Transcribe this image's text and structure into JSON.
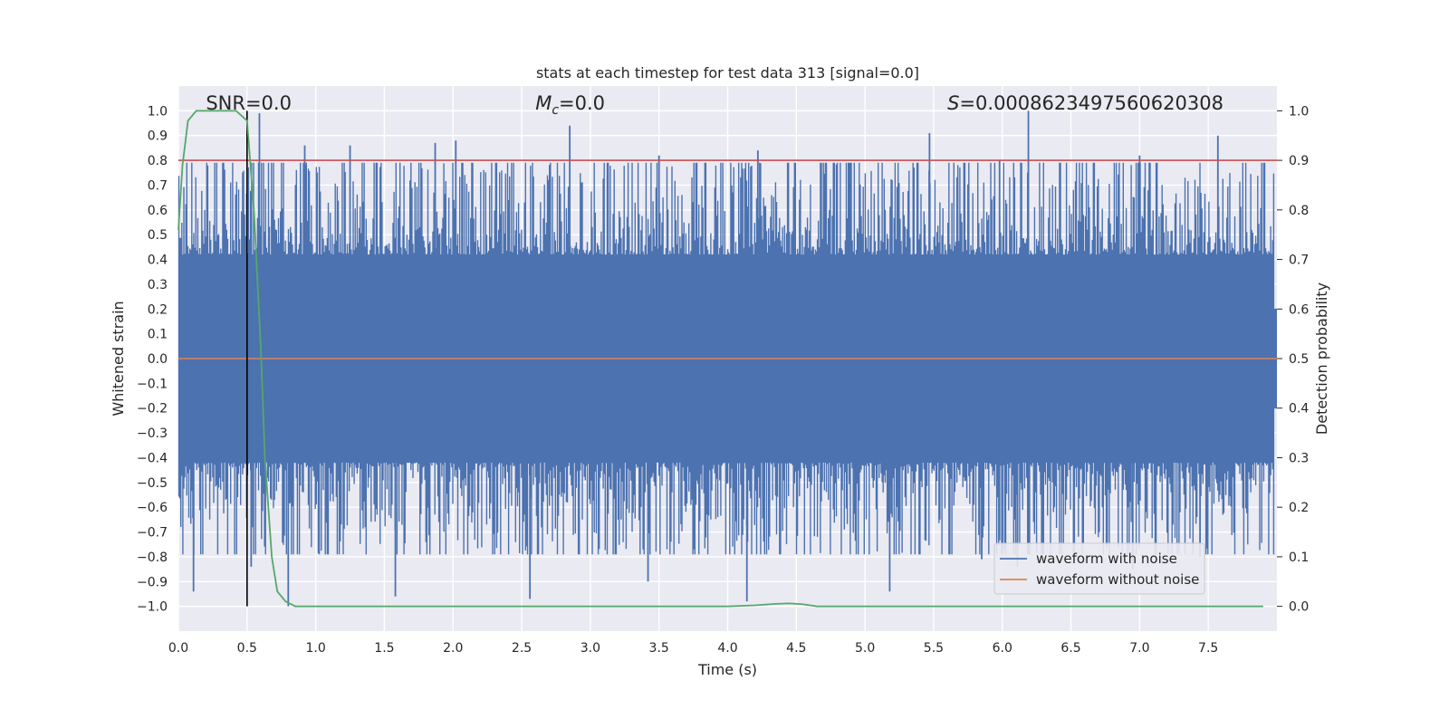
{
  "chart_data": {
    "type": "line",
    "title": "stats at each timestep for test data 313 [signal=0.0]",
    "xlabel": "Time (s)",
    "ylabel": "Whitened strain",
    "ylabel_right": "Detection probability",
    "xlim": [
      0.0,
      8.0
    ],
    "ylim": [
      -1.1,
      1.1
    ],
    "ylim_right": [
      -0.05,
      1.05
    ],
    "x_ticks": [
      0.0,
      0.5,
      1.0,
      1.5,
      2.0,
      2.5,
      3.0,
      3.5,
      4.0,
      4.5,
      5.0,
      5.5,
      6.0,
      6.5,
      7.0,
      7.5
    ],
    "x_tick_labels": [
      "0.0",
      "0.5",
      "1.0",
      "1.5",
      "2.0",
      "2.5",
      "3.0",
      "3.5",
      "4.0",
      "4.5",
      "5.0",
      "5.5",
      "6.0",
      "6.5",
      "7.0",
      "7.5"
    ],
    "y_ticks": [
      -1.0,
      -0.9,
      -0.8,
      -0.7,
      -0.6,
      -0.5,
      -0.4,
      -0.3,
      -0.2,
      -0.1,
      0.0,
      0.1,
      0.2,
      0.3,
      0.4,
      0.5,
      0.6,
      0.7,
      0.8,
      0.9,
      1.0
    ],
    "y_tick_labels": [
      "−1.0",
      "−0.9",
      "−0.8",
      "−0.7",
      "−0.6",
      "−0.5",
      "−0.4",
      "−0.3",
      "−0.2",
      "−0.1",
      "0.0",
      "0.1",
      "0.2",
      "0.3",
      "0.4",
      "0.5",
      "0.6",
      "0.7",
      "0.8",
      "0.9",
      "1.0"
    ],
    "y_right_ticks": [
      0.0,
      0.1,
      0.2,
      0.3,
      0.4,
      0.5,
      0.6,
      0.7,
      0.8,
      0.9,
      1.0
    ],
    "y_right_tick_labels": [
      "0.0",
      "0.1",
      "0.2",
      "0.3",
      "0.4",
      "0.5",
      "0.6",
      "0.7",
      "0.8",
      "0.9",
      "1.0"
    ],
    "annotations": {
      "snr": "SNR=0.0",
      "mc_symbol": "M",
      "mc_sub": "c",
      "mc_value": "=0.0",
      "s_symbol": "S",
      "s_value": "=0.0008623497560620308"
    },
    "threshold": {
      "axis": "right",
      "value": 0.9,
      "color": "#c44e52"
    },
    "marker_line": {
      "x": 0.5,
      "y_range": [
        -1.0,
        1.0
      ],
      "color": "#000000"
    },
    "series": [
      {
        "name": "waveform with noise",
        "axis": "left",
        "color": "#4c72b0",
        "kind": "noise",
        "core_amplitude": 0.42,
        "peak_x": [
          0.59,
          0.92,
          1.25,
          1.87,
          2.02,
          2.85,
          3.5,
          4.22,
          5.47,
          5.98,
          6.19,
          7.0,
          7.57
        ],
        "peak_y": [
          0.99,
          0.86,
          0.86,
          0.87,
          0.88,
          0.94,
          0.82,
          0.84,
          0.91,
          0.8,
          1.0,
          0.82,
          0.9
        ],
        "trough_x": [
          0.11,
          0.53,
          0.8,
          1.58,
          2.56,
          3.42,
          4.14,
          5.18,
          5.85,
          6.11,
          6.95,
          7.44
        ],
        "trough_y": [
          -0.94,
          -0.84,
          -1.0,
          -0.96,
          -0.97,
          -0.9,
          -0.98,
          -0.94,
          -0.81,
          -0.84,
          -0.85,
          -0.8
        ]
      },
      {
        "name": "waveform without noise",
        "axis": "left",
        "color": "#dd8452",
        "x": [
          0.0,
          8.0
        ],
        "y": [
          0.0,
          0.0
        ]
      },
      {
        "name": "detection probability",
        "axis": "right",
        "color": "#55a868",
        "x": [
          0.0,
          0.03,
          0.07,
          0.13,
          0.2,
          0.3,
          0.42,
          0.5,
          0.55,
          0.6,
          0.63,
          0.68,
          0.72,
          0.78,
          0.85,
          1.0,
          2.0,
          3.0,
          4.0,
          4.2,
          4.35,
          4.45,
          4.55,
          4.65,
          5.0,
          6.0,
          7.0,
          7.9
        ],
        "y": [
          0.76,
          0.89,
          0.98,
          1.0,
          1.0,
          1.0,
          1.0,
          0.98,
          0.8,
          0.52,
          0.3,
          0.1,
          0.03,
          0.01,
          0.0,
          0.0,
          0.0,
          0.0,
          0.0,
          0.002,
          0.005,
          0.006,
          0.004,
          0.0,
          0.0,
          0.0,
          0.0,
          0.0
        ]
      }
    ],
    "legend": {
      "location": "lower-right",
      "entries": [
        {
          "label": "waveform with noise",
          "color": "#4c72b0"
        },
        {
          "label": "waveform without noise",
          "color": "#dd8452"
        }
      ]
    },
    "grid": true,
    "background": "#eaeaf2"
  }
}
